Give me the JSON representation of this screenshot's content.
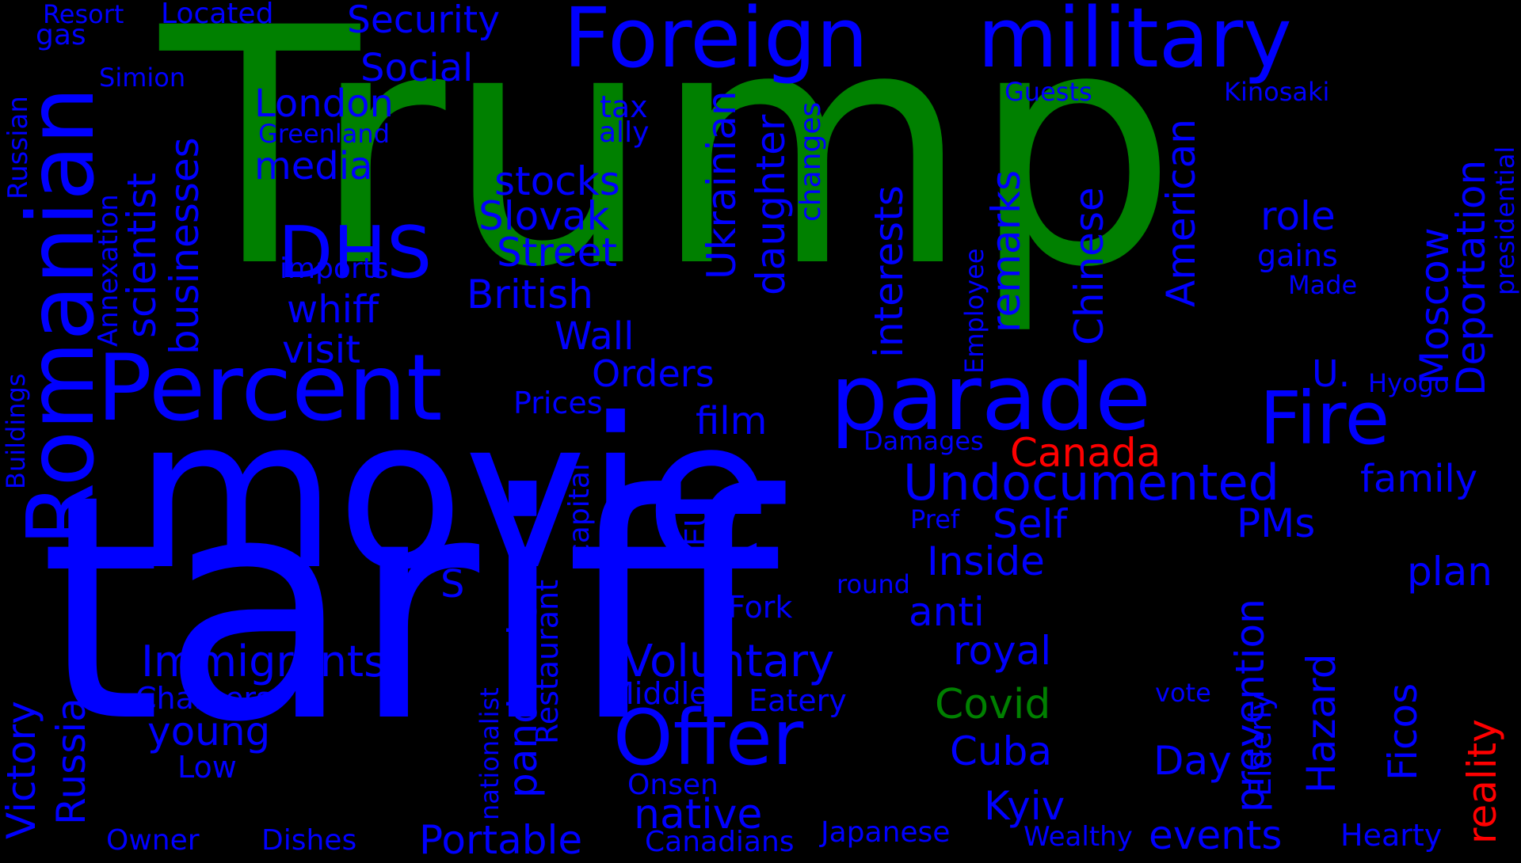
{
  "colors": {
    "background": "#000000",
    "blue": "#0000ff",
    "green": "#008000",
    "red": "#ff0000"
  },
  "words": [
    {
      "text": "Trump",
      "color": "green"
    },
    {
      "text": "tariff",
      "color": "blue"
    },
    {
      "text": "movie",
      "color": "blue"
    },
    {
      "text": "Foreign",
      "color": "blue"
    },
    {
      "text": "military",
      "color": "blue"
    },
    {
      "text": "Percent",
      "color": "blue"
    },
    {
      "text": "parade",
      "color": "blue"
    },
    {
      "text": "Romanian",
      "color": "blue"
    },
    {
      "text": "Fire",
      "color": "blue"
    },
    {
      "text": "Offer",
      "color": "blue"
    },
    {
      "text": "Undocumented",
      "color": "blue"
    },
    {
      "text": "DHS",
      "color": "blue"
    },
    {
      "text": "Canada",
      "color": "red"
    },
    {
      "text": "reality",
      "color": "red"
    },
    {
      "text": "Covid",
      "color": "green"
    },
    {
      "text": "Immigrants",
      "color": "blue"
    },
    {
      "text": "Voluntary",
      "color": "blue"
    },
    {
      "text": "native",
      "color": "blue"
    },
    {
      "text": "Portable",
      "color": "blue"
    },
    {
      "text": "events",
      "color": "blue"
    },
    {
      "text": "Kyiv",
      "color": "blue"
    },
    {
      "text": "Cuba",
      "color": "blue"
    },
    {
      "text": "royal",
      "color": "blue"
    },
    {
      "text": "anti",
      "color": "blue"
    },
    {
      "text": "Inside",
      "color": "blue"
    },
    {
      "text": "Self",
      "color": "blue"
    },
    {
      "text": "PMs",
      "color": "blue"
    },
    {
      "text": "plan",
      "color": "blue"
    },
    {
      "text": "family",
      "color": "blue"
    },
    {
      "text": "Day",
      "color": "blue"
    },
    {
      "text": "young",
      "color": "blue"
    },
    {
      "text": "Victory",
      "color": "blue"
    },
    {
      "text": "Russia",
      "color": "blue"
    },
    {
      "text": "S",
      "color": "blue"
    },
    {
      "text": "pandemic",
      "color": "blue"
    },
    {
      "text": "Security",
      "color": "blue"
    },
    {
      "text": "Social",
      "color": "blue"
    },
    {
      "text": "London",
      "color": "blue"
    },
    {
      "text": "media",
      "color": "blue"
    },
    {
      "text": "stocks",
      "color": "blue"
    },
    {
      "text": "Slovak",
      "color": "blue"
    },
    {
      "text": "Street",
      "color": "blue"
    },
    {
      "text": "British",
      "color": "blue"
    },
    {
      "text": "Wall",
      "color": "blue"
    },
    {
      "text": "Orders",
      "color": "blue"
    },
    {
      "text": "film",
      "color": "blue"
    },
    {
      "text": "whiff",
      "color": "blue"
    },
    {
      "text": "visit",
      "color": "blue"
    },
    {
      "text": "imports",
      "color": "blue"
    },
    {
      "text": "Prices",
      "color": "blue"
    },
    {
      "text": "role",
      "color": "blue"
    },
    {
      "text": "gains",
      "color": "blue"
    },
    {
      "text": "Made",
      "color": "blue"
    },
    {
      "text": "Guests",
      "color": "blue"
    },
    {
      "text": "Kinosaki",
      "color": "blue"
    },
    {
      "text": "Resort",
      "color": "blue"
    },
    {
      "text": "Located",
      "color": "blue"
    },
    {
      "text": "gas",
      "color": "blue"
    },
    {
      "text": "Simion",
      "color": "blue"
    },
    {
      "text": "Greenland",
      "color": "blue"
    },
    {
      "text": "tax",
      "color": "blue"
    },
    {
      "text": "ally",
      "color": "blue"
    },
    {
      "text": "Hyogo",
      "color": "blue"
    },
    {
      "text": "Damages",
      "color": "blue"
    },
    {
      "text": "Pref",
      "color": "blue"
    },
    {
      "text": "round",
      "color": "blue"
    },
    {
      "text": "Fork",
      "color": "blue"
    },
    {
      "text": "Chargers",
      "color": "blue"
    },
    {
      "text": "Low",
      "color": "blue"
    },
    {
      "text": "Middle",
      "color": "blue"
    },
    {
      "text": "Eatery",
      "color": "blue"
    },
    {
      "text": "Onsen",
      "color": "blue"
    },
    {
      "text": "vote",
      "color": "blue"
    },
    {
      "text": "Owner",
      "color": "blue"
    },
    {
      "text": "Dishes",
      "color": "blue"
    },
    {
      "text": "Canadians",
      "color": "blue"
    },
    {
      "text": "Japanese",
      "color": "blue"
    },
    {
      "text": "Wealthy",
      "color": "blue"
    },
    {
      "text": "Hearty",
      "color": "blue"
    },
    {
      "text": "U.",
      "color": "blue"
    },
    {
      "text": "Moscow",
      "color": "blue"
    },
    {
      "text": "Deportation",
      "color": "blue"
    },
    {
      "text": "presidential",
      "color": "blue"
    },
    {
      "text": "Ukrainian",
      "color": "blue"
    },
    {
      "text": "daughter",
      "color": "blue"
    },
    {
      "text": "changes",
      "color": "blue"
    },
    {
      "text": "interests",
      "color": "blue"
    },
    {
      "text": "remarks",
      "color": "blue"
    },
    {
      "text": "Chinese",
      "color": "blue"
    },
    {
      "text": "American",
      "color": "blue"
    },
    {
      "text": "Employee",
      "color": "blue"
    },
    {
      "text": "scientist",
      "color": "blue"
    },
    {
      "text": "businesses",
      "color": "blue"
    },
    {
      "text": "Annexation",
      "color": "blue"
    },
    {
      "text": "Russian",
      "color": "blue"
    },
    {
      "text": "Buildings",
      "color": "blue"
    },
    {
      "text": "capital",
      "color": "blue"
    },
    {
      "text": "EU",
      "color": "blue"
    },
    {
      "text": "Restaurant",
      "color": "blue"
    },
    {
      "text": "nationalist",
      "color": "blue"
    },
    {
      "text": "prevention",
      "color": "blue"
    },
    {
      "text": "Elderly",
      "color": "blue"
    },
    {
      "text": "Hazard",
      "color": "blue"
    },
    {
      "text": "Ficos",
      "color": "blue"
    }
  ]
}
